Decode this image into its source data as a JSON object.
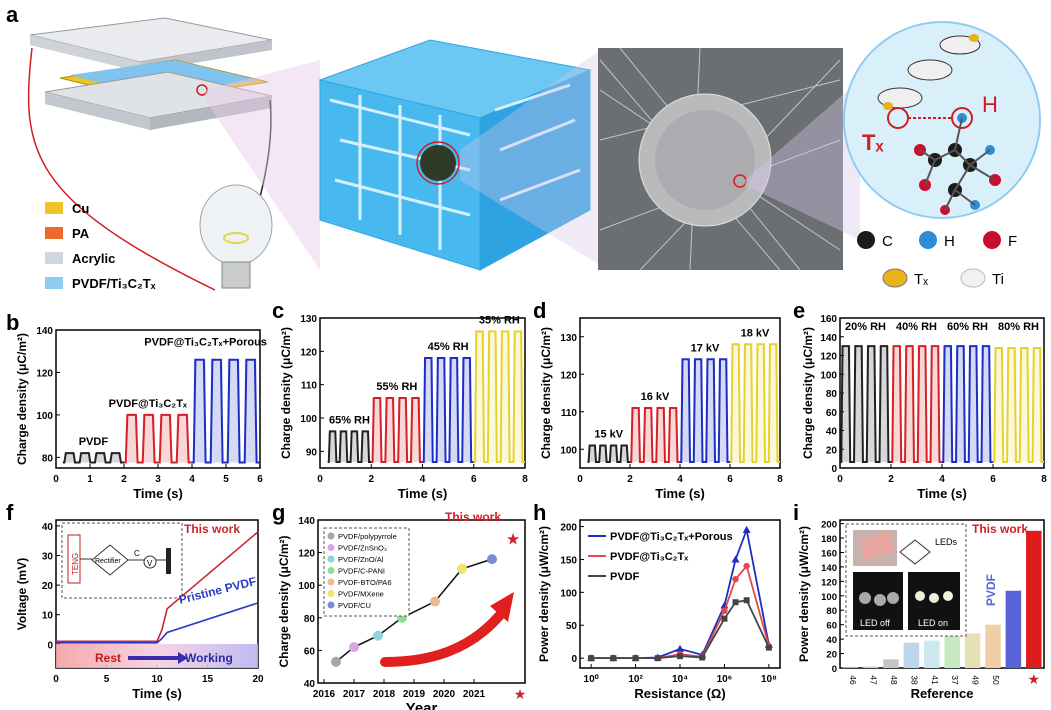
{
  "panels": {
    "a": {
      "letter": "a",
      "legend": [
        {
          "label": "Cu",
          "color": "#f2c22a"
        },
        {
          "label": "PA",
          "color": "#ee6a2c"
        },
        {
          "label": "Acrylic",
          "color": "#cfd6dd"
        },
        {
          "label": "PVDF/Ti₃C₂Tₓ",
          "color": "#8fcdf0"
        }
      ],
      "molecule": {
        "h": "H",
        "tx": "Tₓ",
        "keys": [
          {
            "label": "C",
            "color": "#1b1b1b"
          },
          {
            "label": "H",
            "color": "#2c8fd6"
          },
          {
            "label": "F",
            "color": "#c8102e"
          },
          {
            "label": "Tₓ",
            "color": "#e8b21a"
          },
          {
            "label": "Ti",
            "color": "#f1f1f1"
          }
        ]
      }
    },
    "b": {
      "letter": "b"
    },
    "c": {
      "letter": "c"
    },
    "d": {
      "letter": "d"
    },
    "e": {
      "letter": "e"
    },
    "f": {
      "letter": "f",
      "this_work": "This work",
      "pristine": "Pristine PVDF",
      "rest": "Rest",
      "working": "Working",
      "teng": "TENG",
      "rectifier": "Rectifier",
      "cap": "C",
      "meter": "V"
    },
    "g": {
      "letter": "g",
      "this_work": "This work"
    },
    "h": {
      "letter": "h"
    },
    "i": {
      "letter": "i",
      "this_work": "This work",
      "pvdf": "PVDF",
      "leds": "LEDs",
      "led_off": "LED off",
      "led_on": "LED on"
    }
  },
  "chart_data": [
    {
      "id": "b",
      "type": "line",
      "xlabel": "Time (s)",
      "ylabel": "Charge density (μC/m²)",
      "xlim": [
        0,
        6
      ],
      "ylim": [
        75,
        140
      ],
      "xticks": [
        0,
        1,
        2,
        3,
        4,
        5,
        6
      ],
      "yticks": [
        80,
        100,
        120,
        140
      ],
      "series": [
        {
          "name": "PVDF",
          "start": 0.2,
          "end": 2,
          "peak": 82,
          "color": "#222222"
        },
        {
          "name": "PVDF@Ti₃C₂Tₓ",
          "start": 2,
          "end": 4,
          "peak": 100,
          "color": "#d42027"
        },
        {
          "name": "PVDF@Ti₃C₂Tₓ+Porous",
          "start": 4,
          "end": 6,
          "peak": 126,
          "color": "#1d2ec4"
        }
      ]
    },
    {
      "id": "c",
      "type": "line",
      "xlabel": "Time (s)",
      "ylabel": "Charge density (μC/m²)",
      "xlim": [
        0,
        8
      ],
      "ylim": [
        85,
        130
      ],
      "xticks": [
        0,
        2,
        4,
        6,
        8
      ],
      "yticks": [
        90,
        100,
        110,
        120,
        130
      ],
      "series": [
        {
          "name": "65% RH",
          "start": 0.3,
          "end": 2,
          "peak": 96,
          "color": "#222222"
        },
        {
          "name": "55% RH",
          "start": 2,
          "end": 4,
          "peak": 106,
          "color": "#d42027"
        },
        {
          "name": "45% RH",
          "start": 4,
          "end": 6,
          "peak": 118,
          "color": "#1d2ec4"
        },
        {
          "name": "35% RH",
          "start": 6,
          "end": 8,
          "peak": 126,
          "color": "#e8d12a"
        }
      ]
    },
    {
      "id": "d",
      "type": "line",
      "xlabel": "Time (s)",
      "ylabel": "Charge density (μC/m²)",
      "xlim": [
        0,
        8
      ],
      "ylim": [
        95,
        135
      ],
      "xticks": [
        0,
        2,
        4,
        6,
        8
      ],
      "yticks": [
        100,
        110,
        120,
        130
      ],
      "series": [
        {
          "name": "15 kV",
          "start": 0.3,
          "end": 2,
          "peak": 101,
          "color": "#222222"
        },
        {
          "name": "16 kV",
          "start": 2,
          "end": 4,
          "peak": 111,
          "color": "#d42027"
        },
        {
          "name": "17 kV",
          "start": 4,
          "end": 6,
          "peak": 124,
          "color": "#1d2ec4"
        },
        {
          "name": "18 kV",
          "start": 6,
          "end": 8,
          "peak": 128,
          "color": "#e8d12a"
        }
      ]
    },
    {
      "id": "e",
      "type": "line",
      "xlabel": "Time (s)",
      "ylabel": "Charge density (μC/m²)",
      "xlim": [
        0,
        8
      ],
      "ylim": [
        0,
        160
      ],
      "xticks": [
        0,
        2,
        4,
        6,
        8
      ],
      "yticks": [
        0,
        20,
        40,
        60,
        80,
        100,
        120,
        140,
        160
      ],
      "series": [
        {
          "name": "20% RH",
          "start": 0,
          "end": 2,
          "peak": 130,
          "color": "#222222"
        },
        {
          "name": "40% RH",
          "start": 2,
          "end": 4,
          "peak": 130,
          "color": "#d42027"
        },
        {
          "name": "60% RH",
          "start": 4,
          "end": 6,
          "peak": 130,
          "color": "#1d2ec4"
        },
        {
          "name": "80% RH",
          "start": 6,
          "end": 8,
          "peak": 128,
          "color": "#e8d12a"
        }
      ]
    },
    {
      "id": "f",
      "type": "line",
      "xlabel": "Time (s)",
      "ylabel": "Voltage (mV)",
      "xlim": [
        0,
        20
      ],
      "ylim": [
        -8,
        42
      ],
      "xticks": [
        0,
        5,
        10,
        15,
        20
      ],
      "yticks": [
        0,
        10,
        20,
        30,
        40
      ],
      "series": [
        {
          "name": "This work",
          "color": "#c8262d",
          "x": [
            0,
            10,
            10.5,
            11,
            20
          ],
          "y": [
            1,
            1,
            5,
            12,
            38
          ]
        },
        {
          "name": "Pristine PVDF",
          "color": "#2b39c4",
          "x": [
            0,
            10,
            10.5,
            11,
            20
          ],
          "y": [
            0.5,
            0.5,
            2,
            4,
            14
          ]
        }
      ]
    },
    {
      "id": "g",
      "type": "scatter",
      "xlabel": "Year",
      "ylabel": "Charge density (μC/m²)",
      "xlim": [
        2015.8,
        2022.7
      ],
      "ylim": [
        40,
        140
      ],
      "xticks": [
        2016,
        2017,
        2018,
        2019,
        2020,
        2021
      ],
      "yticks": [
        40,
        60,
        80,
        100,
        120,
        140
      ],
      "series": [
        {
          "name": "PVDF/polypyrrole",
          "x": 2016.4,
          "y": 53,
          "color": "#a7a7a7"
        },
        {
          "name": "PVDF/ZnSnO₃",
          "x": 2017,
          "y": 62,
          "color": "#d7a5e6"
        },
        {
          "name": "PVDF/ZnO/Al",
          "x": 2017.8,
          "y": 69,
          "color": "#8fd3dc"
        },
        {
          "name": "PVDF/C-PANI",
          "x": 2018.6,
          "y": 80,
          "color": "#8fe08f"
        },
        {
          "name": "PVDF-BTO/PA6",
          "x": 2019.7,
          "y": 90,
          "color": "#f0b98b"
        },
        {
          "name": "PVDF/MXene",
          "x": 2020.6,
          "y": 110,
          "color": "#f2e36a"
        },
        {
          "name": "PVDF/CU",
          "x": 2021.6,
          "y": 116,
          "color": "#7f8ad6"
        },
        {
          "name": "This work",
          "x": 2022.3,
          "y": 128,
          "color": "#d0202a"
        }
      ]
    },
    {
      "id": "h",
      "type": "line",
      "xlabel": "Resistance (Ω)",
      "ylabel": "Power density (μW/cm²)",
      "xlim": [
        -0.5,
        8.5
      ],
      "ylim": [
        -15,
        210
      ],
      "xticks": [
        0,
        2,
        4,
        6,
        8
      ],
      "xtick_labels": [
        "10⁰",
        "10²",
        "10⁴",
        "10⁶",
        "10⁸"
      ],
      "yticks": [
        0,
        50,
        100,
        150,
        200
      ],
      "x": [
        0,
        1,
        2,
        3,
        4,
        5,
        6,
        6.5,
        7,
        8
      ],
      "series": [
        {
          "name": "PVDF@Ti₃C₂Tₓ+Porous",
          "color": "#1d2ec4",
          "values": [
            0,
            0,
            0,
            1,
            14,
            5,
            80,
            150,
            195,
            20
          ]
        },
        {
          "name": "PVDF@Ti₃C₂Tₓ",
          "color": "#e04a4a",
          "values": [
            0,
            0,
            0,
            0,
            6,
            2,
            72,
            120,
            140,
            18
          ]
        },
        {
          "name": "PVDF",
          "color": "#444444",
          "values": [
            0,
            0,
            0,
            0,
            3,
            1,
            60,
            85,
            88,
            16
          ]
        }
      ]
    },
    {
      "id": "i",
      "type": "bar",
      "xlabel": "Reference",
      "ylabel": "Power density (μW/cm²)",
      "ylim": [
        0,
        205
      ],
      "yticks": [
        0,
        20,
        40,
        60,
        80,
        100,
        120,
        140,
        160,
        180,
        200
      ],
      "categories": [
        "46",
        "47",
        "48",
        "38",
        "41",
        "37",
        "49",
        "50",
        "PVDF",
        "★"
      ],
      "values": [
        1,
        2,
        12,
        35,
        38,
        45,
        48,
        60,
        107,
        190
      ],
      "colors": [
        "#b9c7d8",
        "#c9d3b0",
        "#c5c5c5",
        "#bcd6ee",
        "#cde8ef",
        "#c9e9c0",
        "#e6e1b4",
        "#f1cfa6",
        "#5a63d6",
        "#e01b1b"
      ]
    }
  ]
}
